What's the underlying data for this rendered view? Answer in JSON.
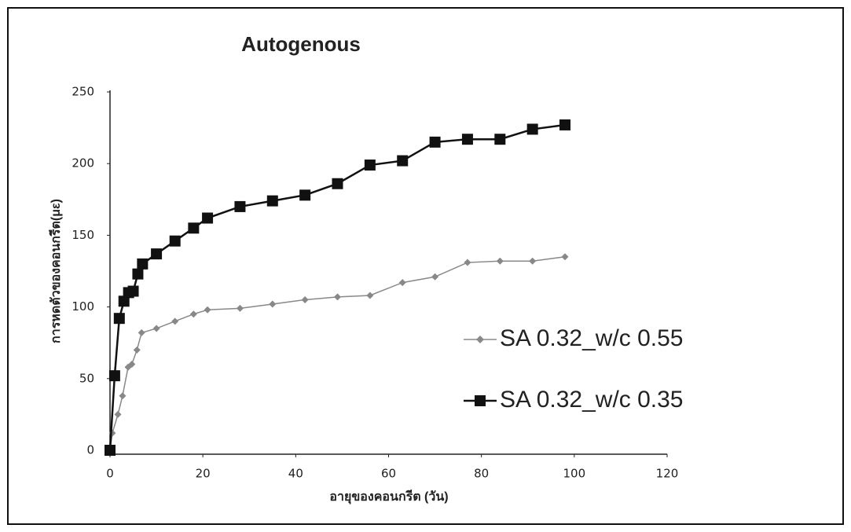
{
  "chart_data": {
    "type": "line",
    "title": "Autogenous",
    "xlabel": "อายุของคอนกรีต (วัน)",
    "ylabel": "การหดตัวของคอนกรีต(με)",
    "xlim": [
      0,
      120
    ],
    "xticks": [
      0,
      20,
      40,
      60,
      80,
      100,
      120
    ],
    "ylim": [
      0,
      250
    ],
    "yticks": [
      0,
      50,
      100,
      150,
      200,
      250
    ],
    "grid": false,
    "legend_position": "right",
    "series": [
      {
        "name": "SA 0.32_w/c 0.55",
        "color": "#888888",
        "marker": "diamond",
        "x": [
          0,
          0.5,
          1.7,
          2.7,
          3.9,
          4.7,
          5.8,
          6.8,
          10,
          14,
          18,
          21,
          28,
          35,
          42,
          49,
          56,
          63,
          70,
          77,
          84,
          91,
          98
        ],
        "values": [
          0,
          12,
          25,
          38,
          58,
          60,
          70,
          82,
          85,
          90,
          95,
          98,
          99,
          102,
          105,
          107,
          108,
          117,
          121,
          131,
          132,
          132,
          135
        ]
      },
      {
        "name": "SA 0.32_w/c 0.35",
        "color": "#111111",
        "marker": "square",
        "x": [
          0,
          1,
          2,
          3,
          4,
          5,
          6,
          7,
          10,
          14,
          18,
          21,
          28,
          35,
          42,
          49,
          56,
          63,
          70,
          77,
          84,
          91,
          98
        ],
        "values": [
          0,
          52,
          92,
          104,
          110,
          111,
          123,
          130,
          137,
          146,
          155,
          162,
          170,
          174,
          178,
          186,
          199,
          202,
          215,
          217,
          217,
          224,
          227
        ]
      }
    ]
  }
}
